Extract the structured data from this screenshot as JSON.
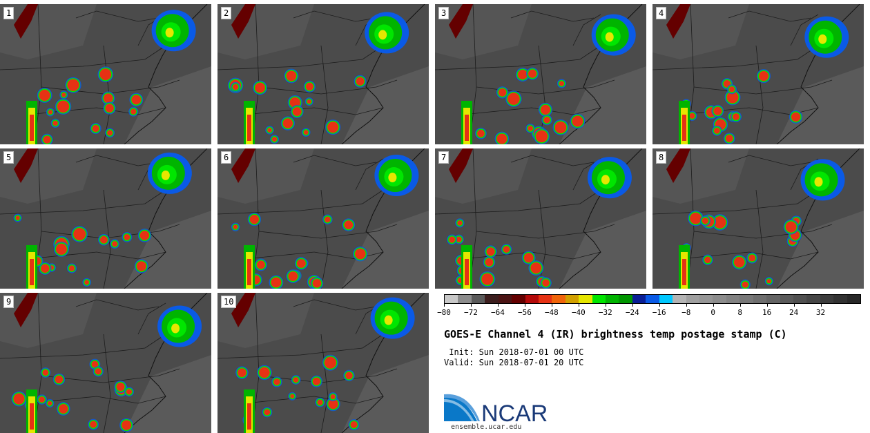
{
  "panels": [
    {
      "label": "1",
      "col": 0,
      "row": 0
    },
    {
      "label": "2",
      "col": 1,
      "row": 0
    },
    {
      "label": "3",
      "col": 2,
      "row": 0
    },
    {
      "label": "4",
      "col": 3,
      "row": 0
    },
    {
      "label": "5",
      "col": 0,
      "row": 1
    },
    {
      "label": "6",
      "col": 1,
      "row": 1
    },
    {
      "label": "7",
      "col": 2,
      "row": 1
    },
    {
      "label": "8",
      "col": 3,
      "row": 1
    },
    {
      "label": "9",
      "col": 0,
      "row": 2
    },
    {
      "label": "10",
      "col": 1,
      "row": 2
    }
  ],
  "colorbar": {
    "colors": [
      "#c8c8c8",
      "#8c8c8c",
      "#5a5a5a",
      "#3c1e1e",
      "#4b1414",
      "#640000",
      "#b40a0a",
      "#e63214",
      "#f0640a",
      "#d2a000",
      "#e6e600",
      "#00e600",
      "#00b400",
      "#009600",
      "#0a1e96",
      "#0a5ae6",
      "#00c8ff",
      "#b4b4b4",
      "#a0a0a0",
      "#969696",
      "#8c8c8c",
      "#828282",
      "#787878",
      "#6e6e6e",
      "#646464",
      "#5a5a5a",
      "#505050",
      "#464646",
      "#3c3c3c",
      "#323232",
      "#282828"
    ],
    "ticks": [
      "−80",
      "−72",
      "−64",
      "−56",
      "−48",
      "−40",
      "−32",
      "−24",
      "−16",
      "−8",
      "0",
      "8",
      "16",
      "24",
      "32"
    ]
  },
  "title": "GOES-E Channel 4 (IR) brightness temp postage stamp (C)",
  "init_line": " Init: Sun 2018-07-01 00 UTC",
  "valid_line": "Valid: Sun 2018-07-01 20 UTC",
  "logo_text": "NCAR",
  "website": "ensemble.ucar.edu"
}
